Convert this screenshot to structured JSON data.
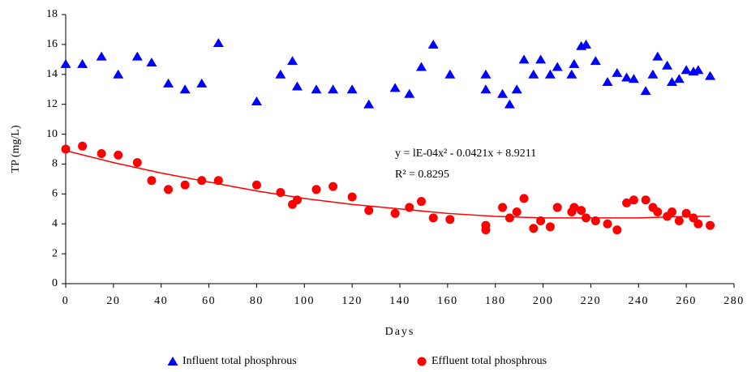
{
  "chart_data": {
    "type": "scatter",
    "x_label": "Days",
    "y_label": "TP (mg/L)",
    "xlim": [
      0,
      280
    ],
    "xticks": [
      0,
      20,
      40,
      60,
      80,
      100,
      120,
      140,
      160,
      180,
      200,
      220,
      240,
      260,
      280
    ],
    "ylim": [
      0,
      18
    ],
    "yticks": [
      0,
      2,
      4,
      6,
      8,
      10,
      12,
      14,
      16,
      18
    ],
    "grid": false,
    "series": [
      {
        "name": "Influent total phosphrous",
        "color": "#0000ff",
        "marker": "triangle",
        "x": [
          0,
          7,
          15,
          22,
          30,
          36,
          43,
          50,
          57,
          64,
          80,
          90,
          95,
          97,
          105,
          112,
          120,
          127,
          138,
          144,
          149,
          154,
          161,
          176,
          176,
          183,
          186,
          189,
          192,
          196,
          199,
          203,
          206,
          212,
          213,
          216,
          218,
          222,
          227,
          231,
          235,
          238,
          243,
          246,
          248,
          252,
          254,
          257,
          260,
          263,
          265,
          270
        ],
        "values": [
          14.7,
          14.7,
          15.2,
          14,
          15.2,
          14.8,
          13.4,
          13,
          13.4,
          16.1,
          12.2,
          14,
          14.9,
          13.2,
          13,
          13,
          13,
          12,
          13.1,
          12.7,
          14.5,
          16,
          14,
          13,
          14,
          12.7,
          12,
          13,
          15,
          14,
          15,
          14,
          14.5,
          14,
          14.7,
          15.9,
          16,
          14.9,
          13.5,
          14.1,
          13.8,
          13.7,
          12.9,
          14,
          15.2,
          14.6,
          13.5,
          13.7,
          14.3,
          14.2,
          14.3,
          13.9
        ]
      },
      {
        "name": "Effluent total phosphrous",
        "color": "#ff0000",
        "marker": "circle",
        "x": [
          0,
          7,
          15,
          22,
          30,
          36,
          43,
          50,
          57,
          64,
          80,
          90,
          95,
          97,
          105,
          112,
          120,
          127,
          138,
          144,
          149,
          154,
          161,
          176,
          176,
          183,
          186,
          189,
          192,
          196,
          199,
          203,
          206,
          212,
          213,
          216,
          218,
          222,
          227,
          231,
          235,
          238,
          243,
          246,
          248,
          252,
          254,
          257,
          260,
          263,
          265,
          270
        ],
        "values": [
          9,
          9.2,
          8.7,
          8.6,
          8.1,
          6.9,
          6.3,
          6.6,
          6.9,
          6.9,
          6.6,
          6.1,
          5.3,
          5.6,
          6.3,
          6.5,
          5.8,
          4.9,
          4.7,
          5.1,
          5.5,
          4.4,
          4.3,
          3.9,
          3.6,
          5.1,
          4.4,
          4.8,
          5.7,
          3.7,
          4.2,
          3.8,
          5.1,
          4.8,
          5.1,
          4.9,
          4.4,
          4.2,
          4,
          3.6,
          5.4,
          5.6,
          5.6,
          5.1,
          4.8,
          4.5,
          4.8,
          4.2,
          4.7,
          4.4,
          4,
          3.9
        ]
      }
    ],
    "trendline": {
      "color": "#ff0000",
      "x": [
        0,
        20,
        40,
        60,
        80,
        100,
        120,
        140,
        160,
        180,
        200,
        220,
        240,
        260,
        270
      ],
      "values": [
        8.9,
        8.1,
        7.4,
        6.8,
        6.2,
        5.7,
        5.3,
        5.0,
        4.7,
        4.5,
        4.4,
        4.4,
        4.4,
        4.5,
        4.5
      ]
    },
    "annotations": [
      "y = lE-04x² - 0.0421x + 8.9211",
      "R² = 0.8295"
    ]
  }
}
